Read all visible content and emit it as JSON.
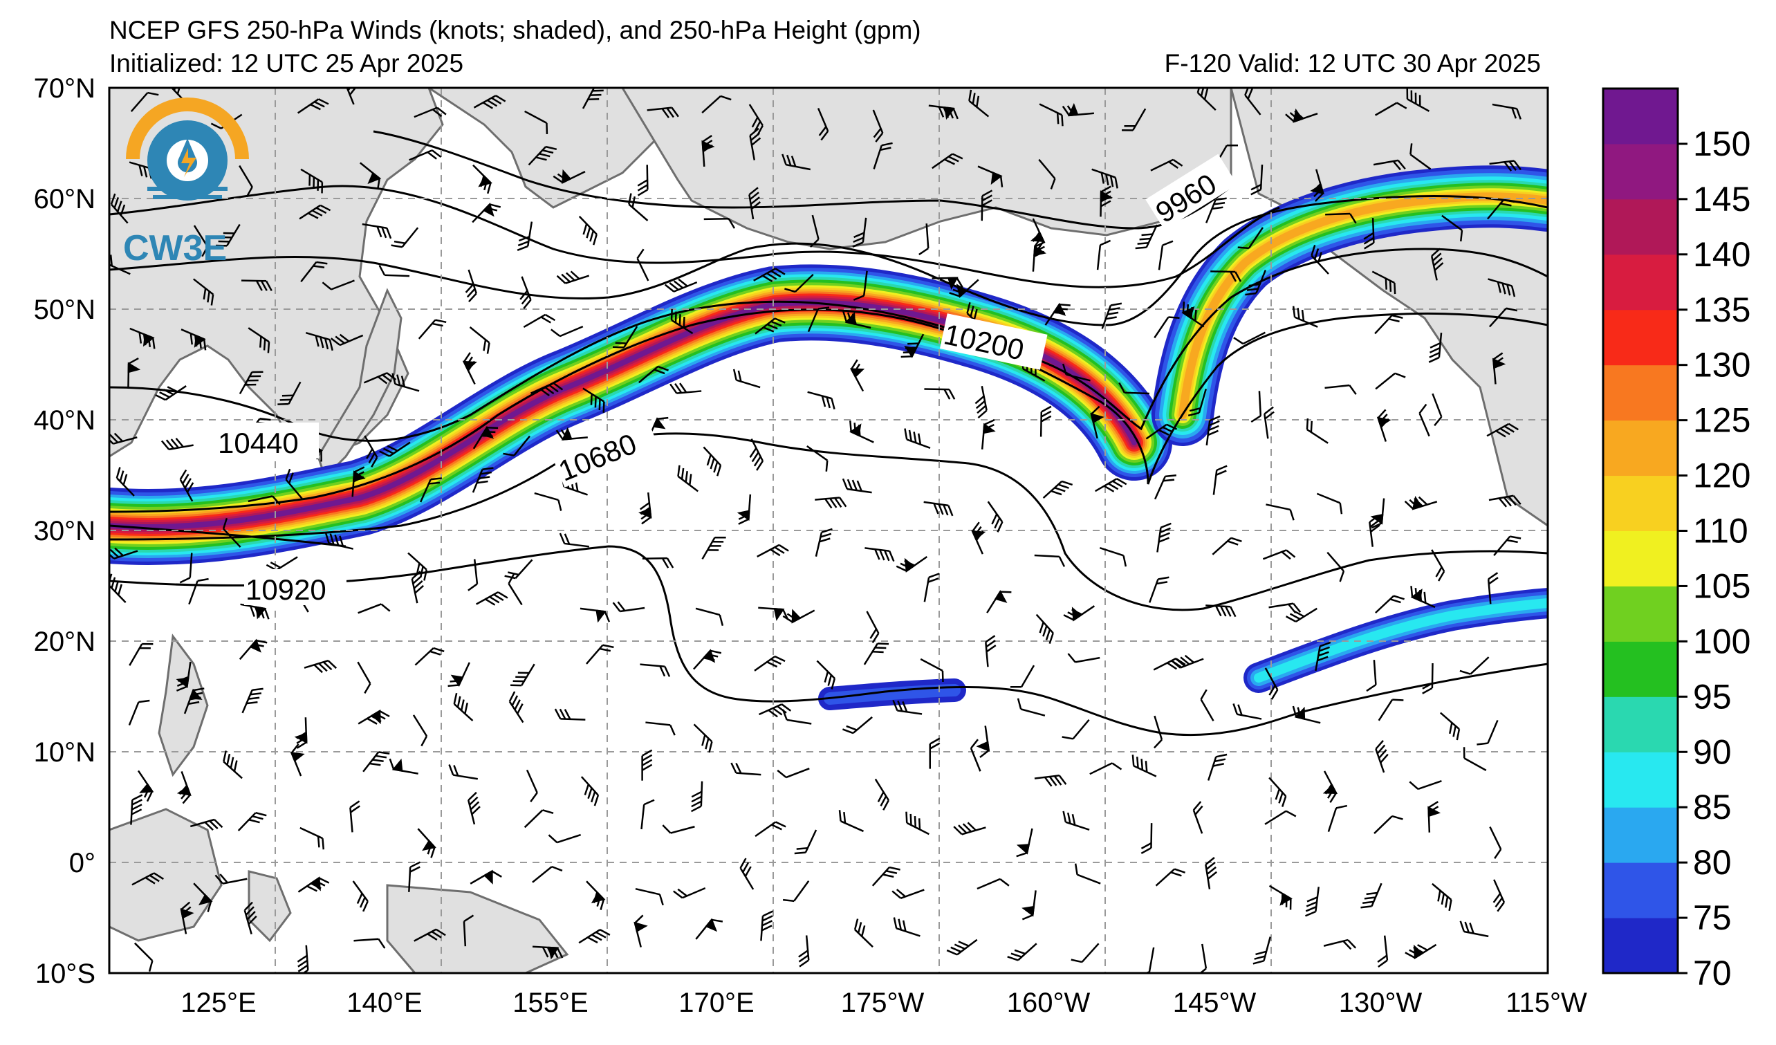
{
  "header": {
    "title": "NCEP GFS 250-hPa Winds (knots; shaded), and 250-hPa Height (gpm)",
    "initialized": "Initialized: 12 UTC 25 Apr 2025",
    "valid": "F-120  Valid: 12 UTC 30 Apr 2025"
  },
  "logo": {
    "text": "CW3E"
  },
  "axes": {
    "lat_labels": [
      "70°N",
      "60°N",
      "50°N",
      "40°N",
      "30°N",
      "20°N",
      "10°N",
      "0°",
      "10°S"
    ],
    "lon_labels": [
      "125°E",
      "140°E",
      "155°E",
      "170°E",
      "175°W",
      "160°W",
      "145°W",
      "130°W",
      "115°W"
    ]
  },
  "contour_labels": [
    "9960",
    "10200",
    "10440",
    "10680",
    "10920"
  ],
  "colorbar": {
    "ticks": [
      "70",
      "75",
      "80",
      "85",
      "90",
      "95",
      "100",
      "105",
      "110",
      "120",
      "125",
      "130",
      "135",
      "140",
      "145",
      "150"
    ],
    "colors": [
      "#1f28c8",
      "#2f55e8",
      "#2aa8f0",
      "#28e8f0",
      "#2ad8b0",
      "#24c020",
      "#70d020",
      "#f0f020",
      "#f8d020",
      "#f8a820",
      "#f87820",
      "#f82a18",
      "#d81c40",
      "#b01858",
      "#901880",
      "#701890"
    ]
  },
  "map": {
    "colors": {
      "land": "#e0e0e0",
      "coast": "#6e6e6e",
      "grid": "#9a9a9a"
    }
  }
}
